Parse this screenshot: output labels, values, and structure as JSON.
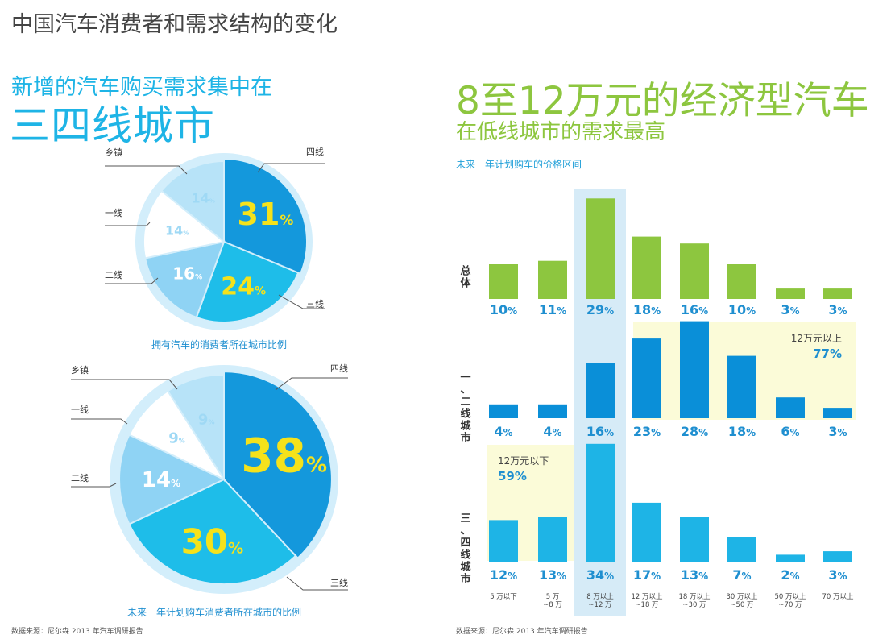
{
  "header": {
    "title": "中国汽车消费者和需求结构的变化"
  },
  "left": {
    "heading_line1": "新增的汽车购买需求集中在",
    "heading_line2": "三四线城市",
    "source": "数据来源：尼尔森 2013 年汽车调研报告"
  },
  "right": {
    "heading_line1": "8至12万元的经济型汽车",
    "heading_line2": "在低线城市的需求最高",
    "chart_subtitle": "未来一年计划购车的价格区间",
    "source": "数据来源：尼尔森 2013 年汽车调研报告"
  },
  "colors": {
    "green": "#8dc63f",
    "blue": "#1eb4e6",
    "dark_blue": "#0a8fd8",
    "label_blue": "#1f8fd0",
    "yellow": "#f5e21b",
    "highlight_blue": "#d6ebf7",
    "highlight_yellow": "#fbfbd8"
  },
  "chart_data": [
    {
      "type": "pie",
      "title": "拥有汽车的消费者所在城市比例",
      "slices": [
        {
          "label": "四线",
          "value": 31,
          "display": "31%"
        },
        {
          "label": "三线",
          "value": 24,
          "display": "24%"
        },
        {
          "label": "二线",
          "value": 16,
          "display": "16%"
        },
        {
          "label": "一线",
          "value": 14,
          "display": "14%"
        },
        {
          "label": "乡镇",
          "value": 14,
          "display": "14%"
        }
      ]
    },
    {
      "type": "pie",
      "title": "未来一年计划购车消费者所在城市的比例",
      "slices": [
        {
          "label": "四线",
          "value": 38,
          "display": "38%"
        },
        {
          "label": "三线",
          "value": 30,
          "display": "30%"
        },
        {
          "label": "二线",
          "value": 14,
          "display": "14%"
        },
        {
          "label": "一线",
          "value": 9,
          "display": "9%"
        },
        {
          "label": "乡镇",
          "value": 9,
          "display": "9%"
        }
      ]
    },
    {
      "type": "bar",
      "title": "未来一年计划购车的价格区间",
      "categories": [
        "5 万以下",
        "5 万 ~8 万",
        "8 万以上 ~12 万",
        "12 万以上 ~18 万",
        "18 万以上 ~30 万",
        "30 万以上 ~50 万",
        "50 万以上 ~70 万",
        "70 万以上"
      ],
      "series": [
        {
          "name": "总体",
          "values": [
            10,
            11,
            29,
            18,
            16,
            10,
            3,
            3
          ]
        },
        {
          "name": "一、二线城市",
          "values": [
            4,
            4,
            16,
            23,
            28,
            18,
            6,
            3
          ]
        },
        {
          "name": "三、四线城市",
          "values": [
            12,
            13,
            34,
            17,
            13,
            7,
            2,
            3
          ]
        }
      ],
      "annotations": [
        {
          "label": "12万元以上",
          "value": "77%"
        },
        {
          "label": "12万元以下",
          "value": "59%"
        }
      ],
      "highlight_category": "8 万以上 ~12 万"
    }
  ]
}
